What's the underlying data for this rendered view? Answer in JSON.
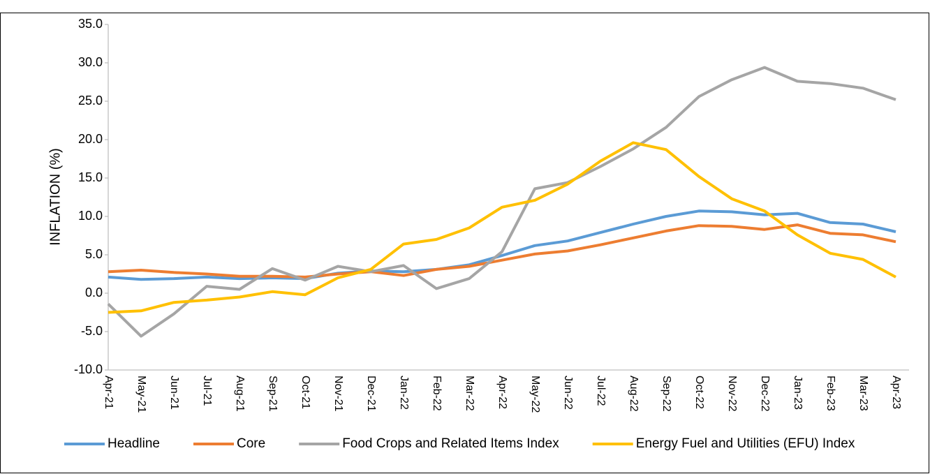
{
  "chart_data": {
    "type": "line",
    "y_label": "INFLATION (%)",
    "categories": [
      "Apr-21",
      "May-21",
      "Jun-21",
      "Jul-21",
      "Aug-21",
      "Sep-21",
      "Oct-21",
      "Nov-21",
      "Dec-21",
      "Jan-22",
      "Feb-22",
      "Mar-22",
      "Apr-22",
      "May-22",
      "Jun-22",
      "Jul-22",
      "Aug-22",
      "Sep-22",
      "Oct-22",
      "Nov-22",
      "Dec-22",
      "Jan-23",
      "Feb-23",
      "Mar-23",
      "Apr-23"
    ],
    "series": [
      {
        "name": "Headline",
        "color": "#5b9bd5",
        "values": [
          2.1,
          1.8,
          1.9,
          2.1,
          1.9,
          2.0,
          1.9,
          2.6,
          2.9,
          2.8,
          3.1,
          3.7,
          4.9,
          6.2,
          6.8,
          7.9,
          9.0,
          10.0,
          10.7,
          10.6,
          10.2,
          10.4,
          9.2,
          9.0,
          8.0
        ]
      },
      {
        "name": "Core",
        "color": "#ed7d31",
        "values": [
          2.8,
          3.0,
          2.7,
          2.5,
          2.2,
          2.2,
          2.1,
          2.5,
          2.8,
          2.3,
          3.1,
          3.5,
          4.3,
          5.1,
          5.5,
          6.3,
          7.2,
          8.1,
          8.8,
          8.7,
          8.3,
          8.9,
          7.8,
          7.6,
          6.7
        ]
      },
      {
        "name": "Food Crops and Related Items Index",
        "color": "#a5a5a5",
        "values": [
          -1.4,
          -5.6,
          -2.7,
          0.9,
          0.5,
          3.2,
          1.7,
          3.5,
          2.8,
          3.6,
          0.6,
          1.9,
          5.4,
          13.6,
          14.4,
          16.5,
          18.8,
          21.6,
          25.6,
          27.8,
          29.4,
          27.6,
          27.3,
          26.7,
          25.2
        ]
      },
      {
        "name": "Energy Fuel and Utilities (EFU) Index",
        "color": "#ffc000",
        "values": [
          -2.5,
          -2.3,
          -1.2,
          -0.9,
          -0.5,
          0.2,
          -0.2,
          2.0,
          3.1,
          6.4,
          7.0,
          8.5,
          11.2,
          12.1,
          14.2,
          17.2,
          19.6,
          18.7,
          15.2,
          12.3,
          10.7,
          7.6,
          5.2,
          4.4,
          2.1
        ]
      }
    ],
    "ylim": [
      -10,
      35
    ],
    "yticks": [
      {
        "value": -10,
        "label": "-10.0"
      },
      {
        "value": -5,
        "label": "-5.0"
      },
      {
        "value": 0,
        "label": "0.0"
      },
      {
        "value": 5,
        "label": "5.0"
      },
      {
        "value": 10,
        "label": "10.0"
      },
      {
        "value": 15,
        "label": "15.0"
      },
      {
        "value": 20,
        "label": "20.0"
      },
      {
        "value": 25,
        "label": "25.0"
      },
      {
        "value": 30,
        "label": "30.0"
      },
      {
        "value": 35,
        "label": "35.0"
      }
    ],
    "legend": "bottom",
    "grid": false
  }
}
